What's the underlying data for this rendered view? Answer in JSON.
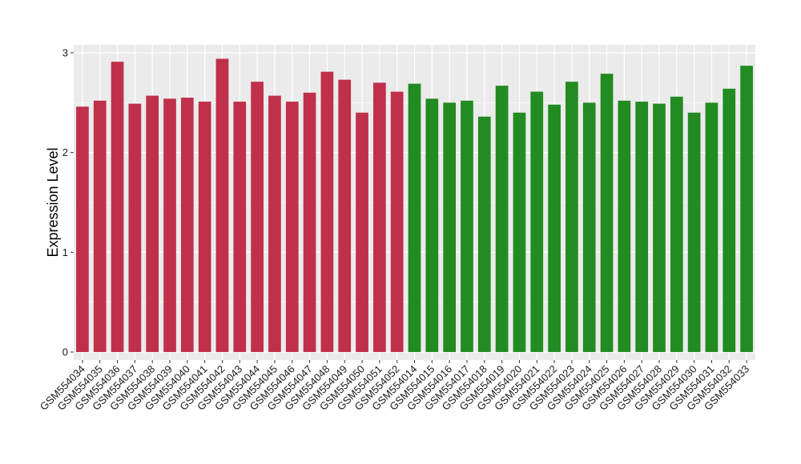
{
  "chart_data": {
    "type": "bar",
    "title": "",
    "xlabel": "",
    "ylabel": "Expression Level",
    "ylim": [
      -0.08,
      3.08
    ],
    "yticks": [
      0,
      1,
      2,
      3
    ],
    "grid": true,
    "legend": "none",
    "colors": {
      "panel_background": "#ebebeb",
      "gridline": "#ffffff",
      "group_1": "#c0304a",
      "group_2": "#228b22"
    },
    "categories": [
      "GSM554034",
      "GSM554035",
      "GSM554036",
      "GSM554037",
      "GSM554038",
      "GSM554039",
      "GSM554040",
      "GSM554041",
      "GSM554042",
      "GSM554043",
      "GSM554044",
      "GSM554045",
      "GSM554046",
      "GSM554047",
      "GSM554048",
      "GSM554049",
      "GSM554050",
      "GSM554051",
      "GSM554052",
      "GSM554014",
      "GSM554015",
      "GSM554016",
      "GSM554017",
      "GSM554018",
      "GSM554019",
      "GSM554020",
      "GSM554021",
      "GSM554022",
      "GSM554023",
      "GSM554024",
      "GSM554025",
      "GSM554026",
      "GSM554027",
      "GSM554028",
      "GSM554029",
      "GSM554030",
      "GSM554031",
      "GSM554032",
      "GSM554033"
    ],
    "values": [
      2.46,
      2.52,
      2.91,
      2.49,
      2.57,
      2.54,
      2.55,
      2.51,
      2.94,
      2.51,
      2.71,
      2.57,
      2.51,
      2.6,
      2.81,
      2.73,
      2.4,
      2.7,
      2.61,
      2.69,
      2.54,
      2.5,
      2.52,
      2.36,
      2.67,
      2.4,
      2.61,
      2.48,
      2.71,
      2.5,
      2.79,
      2.52,
      2.51,
      2.49,
      2.56,
      2.4,
      2.5,
      2.64,
      2.87
    ],
    "groups": [
      1,
      1,
      1,
      1,
      1,
      1,
      1,
      1,
      1,
      1,
      1,
      1,
      1,
      1,
      1,
      1,
      1,
      1,
      1,
      2,
      2,
      2,
      2,
      2,
      2,
      2,
      2,
      2,
      2,
      2,
      2,
      2,
      2,
      2,
      2,
      2,
      2,
      2,
      2
    ]
  }
}
